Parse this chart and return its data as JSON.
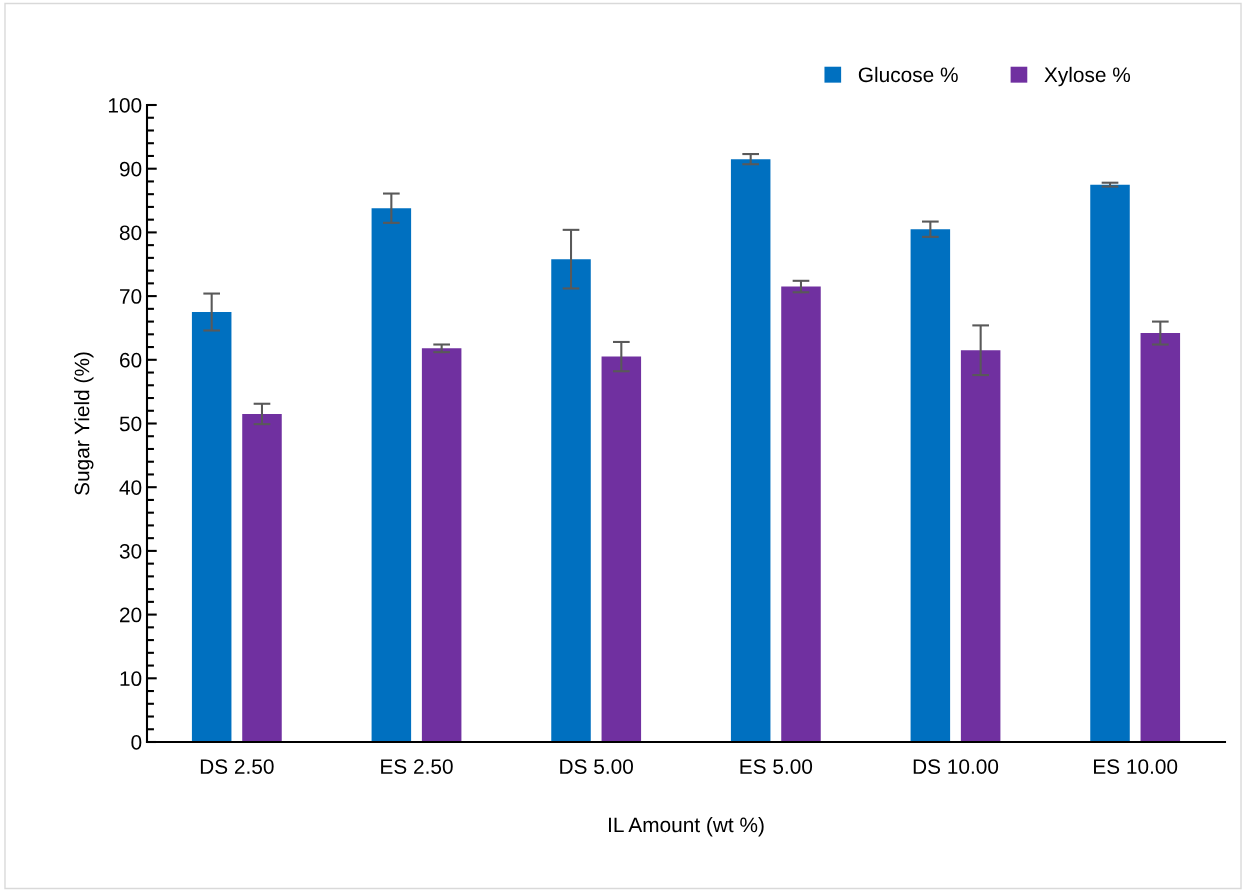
{
  "chart_data": {
    "type": "bar",
    "xlabel": "IL Amount (wt %)",
    "ylabel": "Sugar Yield (%)",
    "categories": [
      "DS 2.50",
      "ES 2.50",
      "DS 5.00",
      "ES 5.00",
      "DS 10.00",
      "ES 10.00"
    ],
    "series": [
      {
        "name": "Glucose %",
        "color": "#0070c0",
        "values": [
          67.5,
          83.8,
          75.8,
          91.5,
          80.5,
          87.5
        ],
        "errors": [
          2.9,
          2.3,
          4.6,
          0.8,
          1.2,
          0.3
        ]
      },
      {
        "name": "Xylose %",
        "color": "#7030a0",
        "values": [
          51.5,
          61.8,
          60.5,
          71.5,
          61.5,
          64.2
        ],
        "errors": [
          1.6,
          0.6,
          2.3,
          0.9,
          3.9,
          1.8
        ]
      }
    ],
    "ylim": [
      0,
      100
    ],
    "yticks": [
      0,
      {
        "value": 2,
        "label": null
      },
      {
        "value": 4,
        "label": null
      },
      {
        "value": 6,
        "label": null
      },
      {
        "value": 8,
        "label": null
      },
      10,
      {
        "value": 12,
        "label": null
      },
      {
        "value": 14,
        "label": null
      },
      {
        "value": 16,
        "label": null
      },
      {
        "value": 18,
        "label": null
      },
      20,
      {
        "value": 22,
        "label": null
      },
      {
        "value": 24,
        "label": null
      },
      {
        "value": 26,
        "label": null
      },
      {
        "value": 28,
        "label": null
      },
      30,
      {
        "value": 32,
        "label": null
      },
      {
        "value": 34,
        "label": null
      },
      {
        "value": 36,
        "label": null
      },
      {
        "value": 38,
        "label": null
      },
      40,
      {
        "value": 42,
        "label": null
      },
      {
        "value": 44,
        "label": null
      },
      {
        "value": 46,
        "label": null
      },
      {
        "value": 48,
        "label": null
      },
      50,
      {
        "value": 52,
        "label": null
      },
      {
        "value": 54,
        "label": null
      },
      {
        "value": 56,
        "label": null
      },
      {
        "value": 58,
        "label": null
      },
      60,
      {
        "value": 62,
        "label": null
      },
      {
        "value": 64,
        "label": null
      },
      {
        "value": 66,
        "label": null
      },
      {
        "value": 68,
        "label": null
      },
      70,
      {
        "value": 72,
        "label": null
      },
      {
        "value": 74,
        "label": null
      },
      {
        "value": 76,
        "label": null
      },
      {
        "value": 78,
        "label": null
      },
      80,
      {
        "value": 82,
        "label": null
      },
      {
        "value": 84,
        "label": null
      },
      {
        "value": 86,
        "label": null
      },
      {
        "value": 88,
        "label": null
      },
      90,
      {
        "value": 92,
        "label": null
      },
      {
        "value": 94,
        "label": null
      },
      {
        "value": 96,
        "label": null
      },
      {
        "value": 98,
        "label": null
      },
      100
    ],
    "grid": false,
    "legend": "top right"
  }
}
